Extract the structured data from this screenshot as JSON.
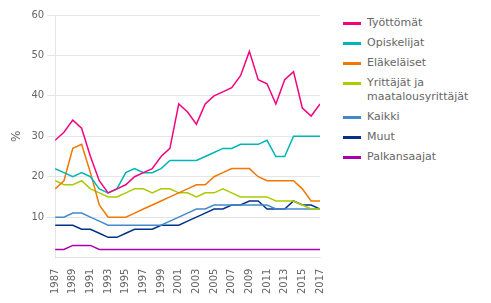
{
  "chart_data": {
    "type": "line",
    "y_label": "%",
    "x": [
      1987,
      1988,
      1989,
      1990,
      1991,
      1992,
      1993,
      1994,
      1995,
      1996,
      1997,
      1998,
      1999,
      2000,
      2001,
      2002,
      2003,
      2004,
      2005,
      2006,
      2007,
      2008,
      2009,
      2010,
      2011,
      2012,
      2013,
      2014,
      2015,
      2016,
      2017
    ],
    "series": [
      {
        "name": "Työttömät",
        "color": "#F0047F",
        "values": [
          29,
          31,
          34,
          32,
          25,
          19,
          16,
          17,
          18,
          20,
          21,
          22,
          25,
          27,
          38,
          36,
          33,
          38,
          40,
          41,
          42,
          45,
          51,
          44,
          43,
          38,
          44,
          46,
          37,
          35,
          38
        ]
      },
      {
        "name": "Opiskelijat",
        "color": "#00B5B8",
        "values": [
          22,
          21,
          20,
          21,
          20,
          17,
          16,
          17,
          21,
          22,
          21,
          21,
          22,
          24,
          24,
          24,
          24,
          25,
          26,
          27,
          27,
          28,
          28,
          28,
          29,
          25,
          25,
          30,
          30,
          30,
          30
        ]
      },
      {
        "name": "Eläkeläiset",
        "color": "#F07800",
        "values": [
          17,
          19,
          27,
          28,
          21,
          13,
          10,
          10,
          10,
          11,
          12,
          13,
          14,
          15,
          16,
          17,
          18,
          18,
          20,
          21,
          22,
          22,
          22,
          20,
          19,
          19,
          19,
          19,
          17,
          14,
          14
        ]
      },
      {
        "name": "Yrittäjät ja\nmaatalousyrittäjät",
        "color": "#AACC00",
        "values": [
          19,
          18,
          18,
          19,
          17,
          16,
          15,
          15,
          16,
          17,
          17,
          16,
          17,
          17,
          16,
          16,
          15,
          16,
          16,
          17,
          16,
          15,
          15,
          15,
          15,
          14,
          14,
          14,
          13,
          12,
          12
        ]
      },
      {
        "name": "Kaikki",
        "color": "#4488CC",
        "values": [
          10,
          10,
          11,
          11,
          10,
          9,
          8,
          8,
          8,
          8,
          8,
          8,
          8,
          9,
          10,
          11,
          12,
          12,
          13,
          13,
          13,
          13,
          13,
          13,
          13,
          12,
          12,
          12,
          12,
          12,
          12
        ]
      },
      {
        "name": "Muut",
        "color": "#003388",
        "values": [
          8,
          8,
          8,
          7,
          7,
          6,
          5,
          5,
          6,
          7,
          7,
          7,
          8,
          8,
          8,
          9,
          10,
          11,
          12,
          12,
          13,
          13,
          14,
          14,
          12,
          12,
          12,
          14,
          13,
          13,
          12
        ]
      },
      {
        "name": "Palkansaajat",
        "color": "#AA00AA",
        "values": [
          2,
          2,
          3,
          3,
          3,
          2,
          2,
          2,
          2,
          2,
          2,
          2,
          2,
          2,
          2,
          2,
          2,
          2,
          2,
          2,
          2,
          2,
          2,
          2,
          2,
          2,
          2,
          2,
          2,
          2,
          2
        ]
      }
    ],
    "xlim": [
      1987,
      2017
    ],
    "xticks": [
      1987,
      1989,
      1991,
      1993,
      1995,
      1997,
      1999,
      2001,
      2003,
      2005,
      2007,
      2009,
      2011,
      2013,
      2015,
      2017
    ],
    "ylim": [
      0,
      60
    ],
    "yticks": [
      10,
      20,
      30,
      40,
      50,
      60
    ],
    "grid": "y",
    "legend": "right"
  }
}
